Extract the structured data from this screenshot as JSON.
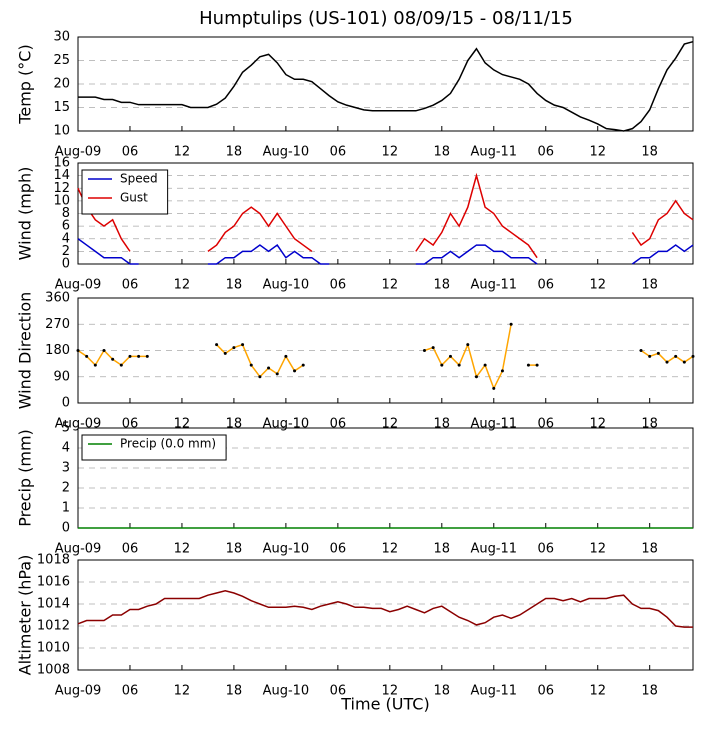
{
  "title": "Humptulips (US-101) 08/09/15 - 08/11/15",
  "chart_data": [
    {
      "type": "line",
      "ylabel": "Temp (°C)",
      "xlim": [
        0,
        71
      ],
      "ylim": [
        10,
        30
      ],
      "yticks": [
        10,
        15,
        20,
        25,
        30
      ],
      "grid": true,
      "xticks": [
        {
          "value": 0,
          "label": "Aug-09"
        },
        {
          "value": 6,
          "label": "06"
        },
        {
          "value": 12,
          "label": "12"
        },
        {
          "value": 18,
          "label": "18"
        },
        {
          "value": 24,
          "label": "Aug-10"
        },
        {
          "value": 30,
          "label": "06"
        },
        {
          "value": 36,
          "label": "12"
        },
        {
          "value": 42,
          "label": "18"
        },
        {
          "value": 48,
          "label": "Aug-11"
        },
        {
          "value": 54,
          "label": "06"
        },
        {
          "value": 60,
          "label": "12"
        },
        {
          "value": 66,
          "label": "18"
        }
      ],
      "x": [
        0,
        1,
        2,
        3,
        4,
        5,
        6,
        7,
        8,
        9,
        10,
        11,
        12,
        13,
        14,
        15,
        16,
        17,
        18,
        19,
        20,
        21,
        22,
        23,
        24,
        25,
        26,
        27,
        28,
        29,
        30,
        31,
        32,
        33,
        34,
        35,
        36,
        37,
        38,
        39,
        40,
        41,
        42,
        43,
        44,
        45,
        46,
        47,
        48,
        49,
        50,
        51,
        52,
        53,
        54,
        55,
        56,
        57,
        58,
        59,
        60,
        61,
        62,
        63,
        64,
        65,
        66,
        67,
        68,
        69,
        70,
        71
      ],
      "series": [
        {
          "color": "#000000",
          "values": [
            17.2,
            17.2,
            17.2,
            16.7,
            16.7,
            16.1,
            16.1,
            15.6,
            15.6,
            15.6,
            15.6,
            15.6,
            15.6,
            15.0,
            15.0,
            15.0,
            15.7,
            17,
            19.5,
            22.5,
            24,
            25.8,
            26.3,
            24.5,
            22,
            21,
            21,
            20.5,
            19,
            17.5,
            16.2,
            15.5,
            15,
            14.5,
            14.3,
            14.3,
            14.3,
            14.3,
            14.3,
            14.3,
            14.8,
            15.5,
            16.5,
            18,
            21,
            25,
            27.5,
            24.5,
            23,
            22,
            21.5,
            21,
            20,
            18,
            16.5,
            15.5,
            15,
            14,
            13,
            12.3,
            11.5,
            10.5,
            10.3,
            10,
            10.5,
            12,
            14.5,
            19,
            23,
            25.5,
            28.5,
            29
          ]
        }
      ]
    },
    {
      "type": "line",
      "ylabel": "Wind (mph)",
      "xlim": [
        0,
        71
      ],
      "ylim": [
        0,
        16
      ],
      "yticks": [
        0,
        2,
        4,
        6,
        8,
        10,
        12,
        14,
        16
      ],
      "grid": true,
      "legend": "upper left",
      "xticks": [
        {
          "value": 0,
          "label": "Aug-09"
        },
        {
          "value": 6,
          "label": "06"
        },
        {
          "value": 12,
          "label": "12"
        },
        {
          "value": 18,
          "label": "18"
        },
        {
          "value": 24,
          "label": "Aug-10"
        },
        {
          "value": 30,
          "label": "06"
        },
        {
          "value": 36,
          "label": "12"
        },
        {
          "value": 42,
          "label": "18"
        },
        {
          "value": 48,
          "label": "Aug-11"
        },
        {
          "value": 54,
          "label": "06"
        },
        {
          "value": 60,
          "label": "12"
        },
        {
          "value": 66,
          "label": "18"
        }
      ],
      "x": [
        0,
        1,
        2,
        3,
        4,
        5,
        6,
        7,
        8,
        9,
        10,
        11,
        12,
        13,
        14,
        15,
        16,
        17,
        18,
        19,
        20,
        21,
        22,
        23,
        24,
        25,
        26,
        27,
        28,
        29,
        30,
        31,
        32,
        33,
        34,
        35,
        36,
        37,
        38,
        39,
        40,
        41,
        42,
        43,
        44,
        45,
        46,
        47,
        48,
        49,
        50,
        51,
        52,
        53,
        54,
        55,
        56,
        57,
        58,
        59,
        60,
        61,
        62,
        63,
        64,
        65,
        66,
        67,
        68,
        69,
        70,
        71
      ],
      "series": [
        {
          "name": "Speed",
          "color": "#0000cc",
          "values": [
            4,
            3,
            2,
            1,
            1,
            1,
            0,
            0,
            null,
            null,
            null,
            null,
            null,
            null,
            null,
            0,
            0,
            1,
            1,
            2,
            2,
            3,
            2,
            3,
            1,
            2,
            1,
            1,
            0,
            0,
            null,
            null,
            null,
            null,
            null,
            null,
            null,
            null,
            null,
            0,
            0,
            1,
            1,
            2,
            1,
            2,
            3,
            3,
            2,
            2,
            1,
            1,
            1,
            0,
            null,
            null,
            null,
            null,
            null,
            null,
            null,
            null,
            null,
            null,
            0,
            1,
            1,
            2,
            2,
            3,
            2,
            3
          ]
        },
        {
          "name": "Gust",
          "color": "#dd0000",
          "values": [
            12,
            9,
            7,
            6,
            7,
            4,
            2,
            null,
            null,
            null,
            null,
            null,
            null,
            null,
            null,
            2,
            3,
            5,
            6,
            8,
            9,
            8,
            6,
            8,
            6,
            4,
            3,
            2,
            null,
            null,
            null,
            null,
            null,
            null,
            null,
            null,
            null,
            null,
            null,
            2,
            4,
            3,
            5,
            8,
            6,
            9,
            14,
            9,
            8,
            6,
            5,
            4,
            3,
            1,
            null,
            null,
            null,
            null,
            null,
            null,
            null,
            null,
            null,
            null,
            5,
            3,
            4,
            7,
            8,
            10,
            8,
            7
          ]
        }
      ]
    },
    {
      "type": "line",
      "ylabel": "Wind Direction",
      "xlim": [
        0,
        71
      ],
      "ylim": [
        0,
        360
      ],
      "yticks": [
        0,
        90,
        180,
        270,
        360
      ],
      "grid": true,
      "markers": "#000000",
      "xticks": [
        {
          "value": 0,
          "label": "Aug-09"
        },
        {
          "value": 6,
          "label": "06"
        },
        {
          "value": 12,
          "label": "12"
        },
        {
          "value": 18,
          "label": "18"
        },
        {
          "value": 24,
          "label": "Aug-10"
        },
        {
          "value": 30,
          "label": "06"
        },
        {
          "value": 36,
          "label": "12"
        },
        {
          "value": 42,
          "label": "18"
        },
        {
          "value": 48,
          "label": "Aug-11"
        },
        {
          "value": 54,
          "label": "06"
        },
        {
          "value": 60,
          "label": "12"
        },
        {
          "value": 66,
          "label": "18"
        }
      ],
      "x": [
        0,
        1,
        2,
        3,
        4,
        5,
        6,
        7,
        8,
        9,
        10,
        11,
        12,
        13,
        14,
        15,
        16,
        17,
        18,
        19,
        20,
        21,
        22,
        23,
        24,
        25,
        26,
        27,
        28,
        29,
        30,
        31,
        32,
        33,
        34,
        35,
        36,
        37,
        38,
        39,
        40,
        41,
        42,
        43,
        44,
        45,
        46,
        47,
        48,
        49,
        50,
        51,
        52,
        53,
        54,
        55,
        56,
        57,
        58,
        59,
        60,
        61,
        62,
        63,
        64,
        65,
        66,
        67,
        68,
        69,
        70,
        71
      ],
      "series": [
        {
          "color": "#ffa500",
          "values": [
            180,
            160,
            130,
            180,
            150,
            130,
            160,
            160,
            160,
            null,
            null,
            null,
            null,
            null,
            null,
            null,
            200,
            170,
            190,
            200,
            130,
            90,
            120,
            100,
            160,
            110,
            130,
            null,
            null,
            null,
            null,
            null,
            null,
            null,
            null,
            null,
            null,
            null,
            null,
            null,
            180,
            190,
            130,
            160,
            130,
            200,
            90,
            130,
            50,
            110,
            270,
            null,
            130,
            130,
            null,
            null,
            null,
            null,
            null,
            null,
            null,
            null,
            null,
            null,
            null,
            180,
            160,
            170,
            140,
            160,
            140,
            160
          ]
        }
      ]
    },
    {
      "type": "line",
      "ylabel": "Precip (mm)",
      "xlim": [
        0,
        71
      ],
      "ylim": [
        0,
        5
      ],
      "yticks": [
        0,
        1,
        2,
        3,
        4,
        5
      ],
      "grid": true,
      "legend": "upper left",
      "xticks": [
        {
          "value": 0,
          "label": "Aug-09"
        },
        {
          "value": 6,
          "label": "06"
        },
        {
          "value": 12,
          "label": "12"
        },
        {
          "value": 18,
          "label": "18"
        },
        {
          "value": 24,
          "label": "Aug-10"
        },
        {
          "value": 30,
          "label": "06"
        },
        {
          "value": 36,
          "label": "12"
        },
        {
          "value": 42,
          "label": "18"
        },
        {
          "value": 48,
          "label": "Aug-11"
        },
        {
          "value": 54,
          "label": "06"
        },
        {
          "value": 60,
          "label": "12"
        },
        {
          "value": 66,
          "label": "18"
        }
      ],
      "x": [
        0,
        1,
        2,
        3,
        4,
        5,
        6,
        7,
        8,
        9,
        10,
        11,
        12,
        13,
        14,
        15,
        16,
        17,
        18,
        19,
        20,
        21,
        22,
        23,
        24,
        25,
        26,
        27,
        28,
        29,
        30,
        31,
        32,
        33,
        34,
        35,
        36,
        37,
        38,
        39,
        40,
        41,
        42,
        43,
        44,
        45,
        46,
        47,
        48,
        49,
        50,
        51,
        52,
        53,
        54,
        55,
        56,
        57,
        58,
        59,
        60,
        61,
        62,
        63,
        64,
        65,
        66,
        67,
        68,
        69,
        70,
        71
      ],
      "series": [
        {
          "name": "Precip (0.0 mm)",
          "color": "#008000",
          "values": [
            0,
            0,
            0,
            0,
            0,
            0,
            0,
            0,
            0,
            0,
            0,
            0,
            0,
            0,
            0,
            0,
            0,
            0,
            0,
            0,
            0,
            0,
            0,
            0,
            0,
            0,
            0,
            0,
            0,
            0,
            0,
            0,
            0,
            0,
            0,
            0,
            0,
            0,
            0,
            0,
            0,
            0,
            0,
            0,
            0,
            0,
            0,
            0,
            0,
            0,
            0,
            0,
            0,
            0,
            0,
            0,
            0,
            0,
            0,
            0,
            0,
            0,
            0,
            0,
            0,
            0,
            0,
            0,
            0,
            0,
            0,
            0
          ]
        }
      ]
    },
    {
      "type": "line",
      "ylabel": "Altimeter (hPa)",
      "xlabel": "Time (UTC)",
      "xlim": [
        0,
        71
      ],
      "ylim": [
        1008,
        1018
      ],
      "yticks": [
        1008,
        1010,
        1012,
        1014,
        1016,
        1018
      ],
      "grid": true,
      "xticks": [
        {
          "value": 0,
          "label": "Aug-09"
        },
        {
          "value": 6,
          "label": "06"
        },
        {
          "value": 12,
          "label": "12"
        },
        {
          "value": 18,
          "label": "18"
        },
        {
          "value": 24,
          "label": "Aug-10"
        },
        {
          "value": 30,
          "label": "06"
        },
        {
          "value": 36,
          "label": "12"
        },
        {
          "value": 42,
          "label": "18"
        },
        {
          "value": 48,
          "label": "Aug-11"
        },
        {
          "value": 54,
          "label": "06"
        },
        {
          "value": 60,
          "label": "12"
        },
        {
          "value": 66,
          "label": "18"
        }
      ],
      "x": [
        0,
        1,
        2,
        3,
        4,
        5,
        6,
        7,
        8,
        9,
        10,
        11,
        12,
        13,
        14,
        15,
        16,
        17,
        18,
        19,
        20,
        21,
        22,
        23,
        24,
        25,
        26,
        27,
        28,
        29,
        30,
        31,
        32,
        33,
        34,
        35,
        36,
        37,
        38,
        39,
        40,
        41,
        42,
        43,
        44,
        45,
        46,
        47,
        48,
        49,
        50,
        51,
        52,
        53,
        54,
        55,
        56,
        57,
        58,
        59,
        60,
        61,
        62,
        63,
        64,
        65,
        66,
        67,
        68,
        69,
        70,
        71
      ],
      "series": [
        {
          "color": "#8b0000",
          "values": [
            1012.2,
            1012.5,
            1012.5,
            1012.5,
            1013,
            1013,
            1013.5,
            1013.5,
            1013.8,
            1014,
            1014.5,
            1014.5,
            1014.5,
            1014.5,
            1014.5,
            1014.8,
            1015,
            1015.2,
            1015,
            1014.7,
            1014.3,
            1014,
            1013.7,
            1013.7,
            1013.7,
            1013.8,
            1013.7,
            1013.5,
            1013.8,
            1014,
            1014.2,
            1014,
            1013.7,
            1013.7,
            1013.6,
            1013.6,
            1013.3,
            1013.5,
            1013.8,
            1013.5,
            1013.2,
            1013.6,
            1013.8,
            1013.3,
            1012.8,
            1012.5,
            1012.1,
            1012.3,
            1012.8,
            1013,
            1012.7,
            1013,
            1013.5,
            1014,
            1014.5,
            1014.5,
            1014.3,
            1014.5,
            1014.2,
            1014.5,
            1014.5,
            1014.5,
            1014.7,
            1014.8,
            1014,
            1013.6,
            1013.6,
            1013.4,
            1012.8,
            1012,
            1011.9,
            1011.9
          ]
        }
      ]
    }
  ]
}
